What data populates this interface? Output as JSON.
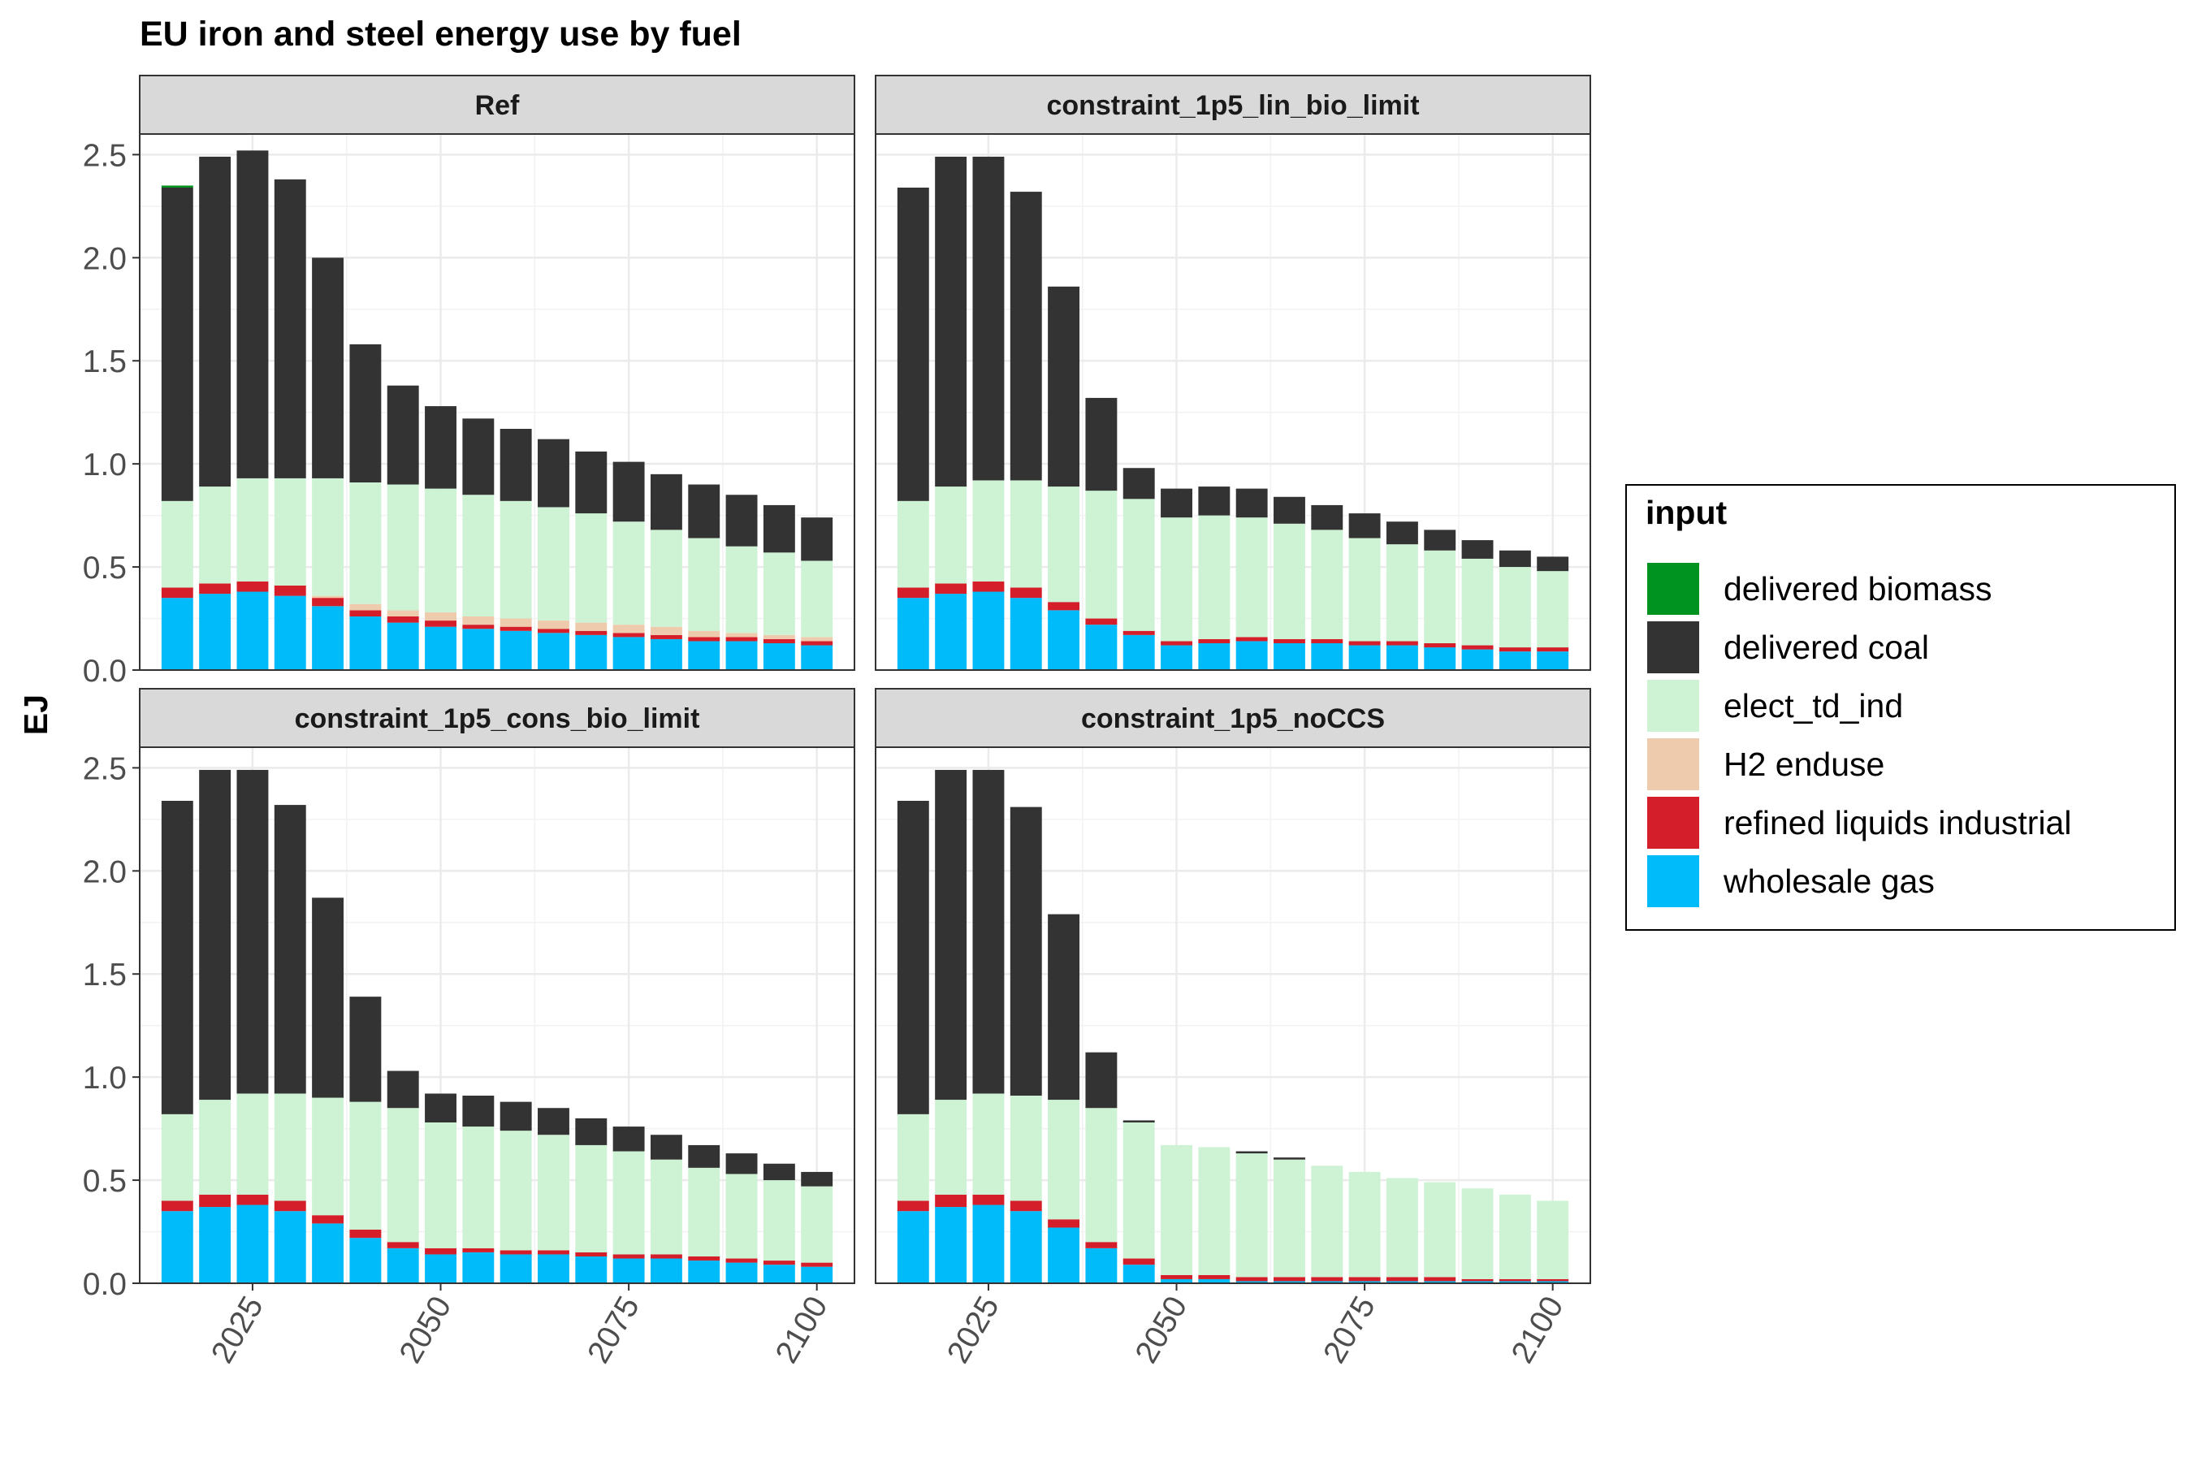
{
  "chart_data": {
    "type": "bar",
    "stacked": true,
    "title": "EU iron and steel energy use by fuel",
    "ylabel": "EJ",
    "xlabel": "",
    "ylim": [
      0,
      2.6
    ],
    "yticks": [
      0.0,
      0.5,
      1.0,
      1.5,
      2.0,
      2.5
    ],
    "ytick_labels": [
      "0.0",
      "0.5",
      "1.0",
      "1.5",
      "2.0",
      "2.5"
    ],
    "xlim": [
      2010,
      2105
    ],
    "xticks": [
      2025,
      2050,
      2075,
      2100
    ],
    "xtick_labels": [
      "2025",
      "2050",
      "2075",
      "2100"
    ],
    "grid": true,
    "legend_position": "right",
    "legend": {
      "title": "input",
      "entries": [
        {
          "name": "delivered biomass",
          "color": "#00931F"
        },
        {
          "name": "delivered coal",
          "color": "#333333"
        },
        {
          "name": "elect_td_ind",
          "color": "#CDF2D4"
        },
        {
          "name": "H2 enduse",
          "color": "#EECBAD"
        },
        {
          "name": "refined liquids industrial",
          "color": "#D41E2A"
        },
        {
          "name": "wholesale gas",
          "color": "#00BBF9"
        }
      ]
    },
    "stack_order_bottom_to_top": [
      "wholesale gas",
      "refined liquids industrial",
      "H2 enduse",
      "elect_td_ind",
      "delivered coal",
      "delivered biomass"
    ],
    "x": [
      2015,
      2020,
      2025,
      2030,
      2035,
      2040,
      2045,
      2050,
      2055,
      2060,
      2065,
      2070,
      2075,
      2080,
      2085,
      2090,
      2095,
      2100
    ],
    "panels": [
      {
        "title": "Ref",
        "series": [
          {
            "name": "wholesale gas",
            "values": [
              0.35,
              0.37,
              0.38,
              0.36,
              0.31,
              0.26,
              0.23,
              0.21,
              0.2,
              0.19,
              0.18,
              0.17,
              0.16,
              0.15,
              0.14,
              0.14,
              0.13,
              0.12
            ]
          },
          {
            "name": "refined liquids industrial",
            "values": [
              0.05,
              0.05,
              0.05,
              0.05,
              0.04,
              0.03,
              0.03,
              0.03,
              0.02,
              0.02,
              0.02,
              0.02,
              0.02,
              0.02,
              0.02,
              0.02,
              0.02,
              0.02
            ]
          },
          {
            "name": "H2 enduse",
            "values": [
              0.0,
              0.0,
              0.0,
              0.0,
              0.01,
              0.03,
              0.03,
              0.04,
              0.04,
              0.04,
              0.04,
              0.04,
              0.04,
              0.04,
              0.03,
              0.02,
              0.02,
              0.02
            ]
          },
          {
            "name": "elect_td_ind",
            "values": [
              0.42,
              0.47,
              0.5,
              0.52,
              0.57,
              0.59,
              0.61,
              0.6,
              0.59,
              0.57,
              0.55,
              0.53,
              0.5,
              0.47,
              0.45,
              0.42,
              0.4,
              0.37
            ]
          },
          {
            "name": "delivered coal",
            "values": [
              1.52,
              1.6,
              1.59,
              1.45,
              1.07,
              0.67,
              0.48,
              0.4,
              0.37,
              0.35,
              0.33,
              0.3,
              0.29,
              0.27,
              0.26,
              0.25,
              0.23,
              0.21
            ]
          },
          {
            "name": "delivered biomass",
            "values": [
              0.01,
              0.0,
              0.0,
              0.0,
              0.0,
              0.0,
              0.0,
              0.0,
              0.0,
              0.0,
              0.0,
              0.0,
              0.0,
              0.0,
              0.0,
              0.0,
              0.0,
              0.0
            ]
          }
        ]
      },
      {
        "title": "constraint_1p5_lin_bio_limit",
        "series": [
          {
            "name": "wholesale gas",
            "values": [
              0.35,
              0.37,
              0.38,
              0.35,
              0.29,
              0.22,
              0.17,
              0.12,
              0.13,
              0.14,
              0.13,
              0.13,
              0.12,
              0.12,
              0.11,
              0.1,
              0.09,
              0.09
            ]
          },
          {
            "name": "refined liquids industrial",
            "values": [
              0.05,
              0.05,
              0.05,
              0.05,
              0.04,
              0.03,
              0.02,
              0.02,
              0.02,
              0.02,
              0.02,
              0.02,
              0.02,
              0.02,
              0.02,
              0.02,
              0.02,
              0.02
            ]
          },
          {
            "name": "H2 enduse",
            "values": [
              0.0,
              0.0,
              0.0,
              0.0,
              0.0,
              0.0,
              0.0,
              0.0,
              0.0,
              0.0,
              0.0,
              0.0,
              0.0,
              0.0,
              0.0,
              0.0,
              0.0,
              0.0
            ]
          },
          {
            "name": "elect_td_ind",
            "values": [
              0.42,
              0.47,
              0.49,
              0.52,
              0.56,
              0.62,
              0.64,
              0.6,
              0.6,
              0.58,
              0.56,
              0.53,
              0.5,
              0.47,
              0.45,
              0.42,
              0.39,
              0.37
            ]
          },
          {
            "name": "delivered coal",
            "values": [
              1.52,
              1.6,
              1.57,
              1.4,
              0.97,
              0.45,
              0.15,
              0.14,
              0.14,
              0.14,
              0.13,
              0.12,
              0.12,
              0.11,
              0.1,
              0.09,
              0.08,
              0.07
            ]
          },
          {
            "name": "delivered biomass",
            "values": [
              0.0,
              0.0,
              0.0,
              0.0,
              0.0,
              0.0,
              0.0,
              0.0,
              0.0,
              0.0,
              0.0,
              0.0,
              0.0,
              0.0,
              0.0,
              0.0,
              0.0,
              0.0
            ]
          }
        ]
      },
      {
        "title": "constraint_1p5_cons_bio_limit",
        "series": [
          {
            "name": "wholesale gas",
            "values": [
              0.35,
              0.37,
              0.38,
              0.35,
              0.29,
              0.22,
              0.17,
              0.14,
              0.15,
              0.14,
              0.14,
              0.13,
              0.12,
              0.12,
              0.11,
              0.1,
              0.09,
              0.08
            ]
          },
          {
            "name": "refined liquids industrial",
            "values": [
              0.05,
              0.06,
              0.05,
              0.05,
              0.04,
              0.04,
              0.03,
              0.03,
              0.02,
              0.02,
              0.02,
              0.02,
              0.02,
              0.02,
              0.02,
              0.02,
              0.02,
              0.02
            ]
          },
          {
            "name": "H2 enduse",
            "values": [
              0.0,
              0.0,
              0.0,
              0.0,
              0.0,
              0.0,
              0.0,
              0.0,
              0.0,
              0.0,
              0.0,
              0.0,
              0.0,
              0.0,
              0.0,
              0.0,
              0.0,
              0.0
            ]
          },
          {
            "name": "elect_td_ind",
            "values": [
              0.42,
              0.46,
              0.49,
              0.52,
              0.57,
              0.62,
              0.65,
              0.61,
              0.59,
              0.58,
              0.56,
              0.52,
              0.5,
              0.46,
              0.43,
              0.41,
              0.39,
              0.37
            ]
          },
          {
            "name": "delivered coal",
            "values": [
              1.52,
              1.6,
              1.57,
              1.4,
              0.97,
              0.51,
              0.18,
              0.14,
              0.15,
              0.14,
              0.13,
              0.13,
              0.12,
              0.12,
              0.11,
              0.1,
              0.08,
              0.07
            ]
          },
          {
            "name": "delivered biomass",
            "values": [
              0.0,
              0.0,
              0.0,
              0.0,
              0.0,
              0.0,
              0.0,
              0.0,
              0.0,
              0.0,
              0.0,
              0.0,
              0.0,
              0.0,
              0.0,
              0.0,
              0.0,
              0.0
            ]
          }
        ]
      },
      {
        "title": "constraint_1p5_noCCS",
        "series": [
          {
            "name": "wholesale gas",
            "values": [
              0.35,
              0.37,
              0.38,
              0.35,
              0.27,
              0.17,
              0.09,
              0.02,
              0.02,
              0.01,
              0.01,
              0.01,
              0.01,
              0.01,
              0.01,
              0.01,
              0.01,
              0.01
            ]
          },
          {
            "name": "refined liquids industrial",
            "values": [
              0.05,
              0.06,
              0.05,
              0.05,
              0.04,
              0.03,
              0.03,
              0.02,
              0.02,
              0.02,
              0.02,
              0.02,
              0.02,
              0.02,
              0.02,
              0.01,
              0.01,
              0.01
            ]
          },
          {
            "name": "H2 enduse",
            "values": [
              0.0,
              0.0,
              0.0,
              0.0,
              0.0,
              0.0,
              0.0,
              0.0,
              0.0,
              0.0,
              0.0,
              0.0,
              0.0,
              0.0,
              0.0,
              0.0,
              0.0,
              0.0
            ]
          },
          {
            "name": "elect_td_ind",
            "values": [
              0.42,
              0.46,
              0.49,
              0.51,
              0.58,
              0.65,
              0.66,
              0.63,
              0.62,
              0.6,
              0.57,
              0.54,
              0.51,
              0.48,
              0.46,
              0.44,
              0.41,
              0.38
            ]
          },
          {
            "name": "delivered coal",
            "values": [
              1.52,
              1.6,
              1.57,
              1.4,
              0.9,
              0.27,
              0.01,
              0.0,
              0.0,
              0.01,
              0.01,
              0.0,
              0.0,
              0.0,
              0.0,
              0.0,
              0.0,
              0.0
            ]
          },
          {
            "name": "delivered biomass",
            "values": [
              0.0,
              0.0,
              0.0,
              0.0,
              0.0,
              0.0,
              0.0,
              0.0,
              0.0,
              0.0,
              0.0,
              0.0,
              0.0,
              0.0,
              0.0,
              0.0,
              0.0,
              0.0
            ]
          }
        ]
      }
    ]
  }
}
